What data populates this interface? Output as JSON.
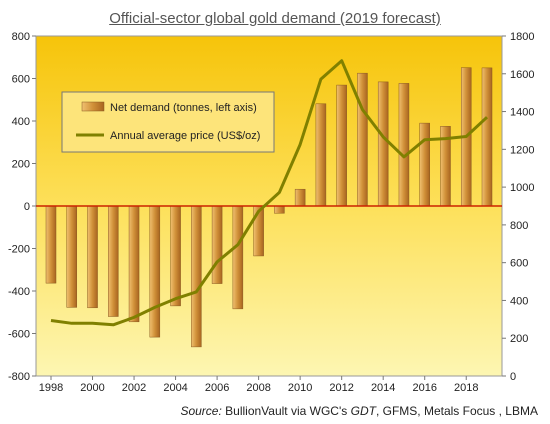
{
  "chart_data": {
    "type": "bar+line",
    "title": "Official-sector global gold demand (2019 forecast)",
    "x": [
      1998,
      1999,
      2000,
      2001,
      2002,
      2003,
      2004,
      2005,
      2006,
      2007,
      2008,
      2009,
      2010,
      2011,
      2012,
      2013,
      2014,
      2015,
      2016,
      2017,
      2018,
      2019
    ],
    "x_tick_labels": [
      "1998",
      "2000",
      "2002",
      "2004",
      "2006",
      "2008",
      "2010",
      "2012",
      "2014",
      "2016",
      "2018"
    ],
    "left_axis": {
      "ylim": [
        -800,
        800
      ],
      "ticks": [
        "800",
        "600",
        "400",
        "200",
        "0",
        "-200",
        "-400",
        "-600",
        "-800"
      ]
    },
    "right_axis": {
      "ylim": [
        0,
        1800
      ],
      "ticks": [
        "1800",
        "1600",
        "1400",
        "1200",
        "1000",
        "800",
        "600",
        "400",
        "200",
        "0"
      ]
    },
    "series": [
      {
        "name": "Net demand (tonnes, left axis)",
        "kind": "bar",
        "axis": "left",
        "color": "#d9a040",
        "values": [
          -363,
          -477,
          -479,
          -520,
          -545,
          -617,
          -470,
          -663,
          -365,
          -484,
          -235,
          -34,
          79,
          481,
          569,
          625,
          584,
          577,
          390,
          375,
          651,
          650
        ]
      },
      {
        "name": "Annual average price (US$/oz)",
        "kind": "line",
        "axis": "right",
        "color": "#808000",
        "values": [
          294,
          279,
          279,
          271,
          310,
          363,
          409,
          445,
          604,
          695,
          872,
          972,
          1225,
          1572,
          1669,
          1411,
          1266,
          1160,
          1251,
          1257,
          1268,
          1370
        ]
      }
    ],
    "legend_placement": "upper-left",
    "grid": false,
    "source": {
      "label": "Source:",
      "text1": "BullionVault via WGC's",
      "em": "GDT",
      "text2": ", GFMS, Metals Focus , LBMA"
    }
  }
}
